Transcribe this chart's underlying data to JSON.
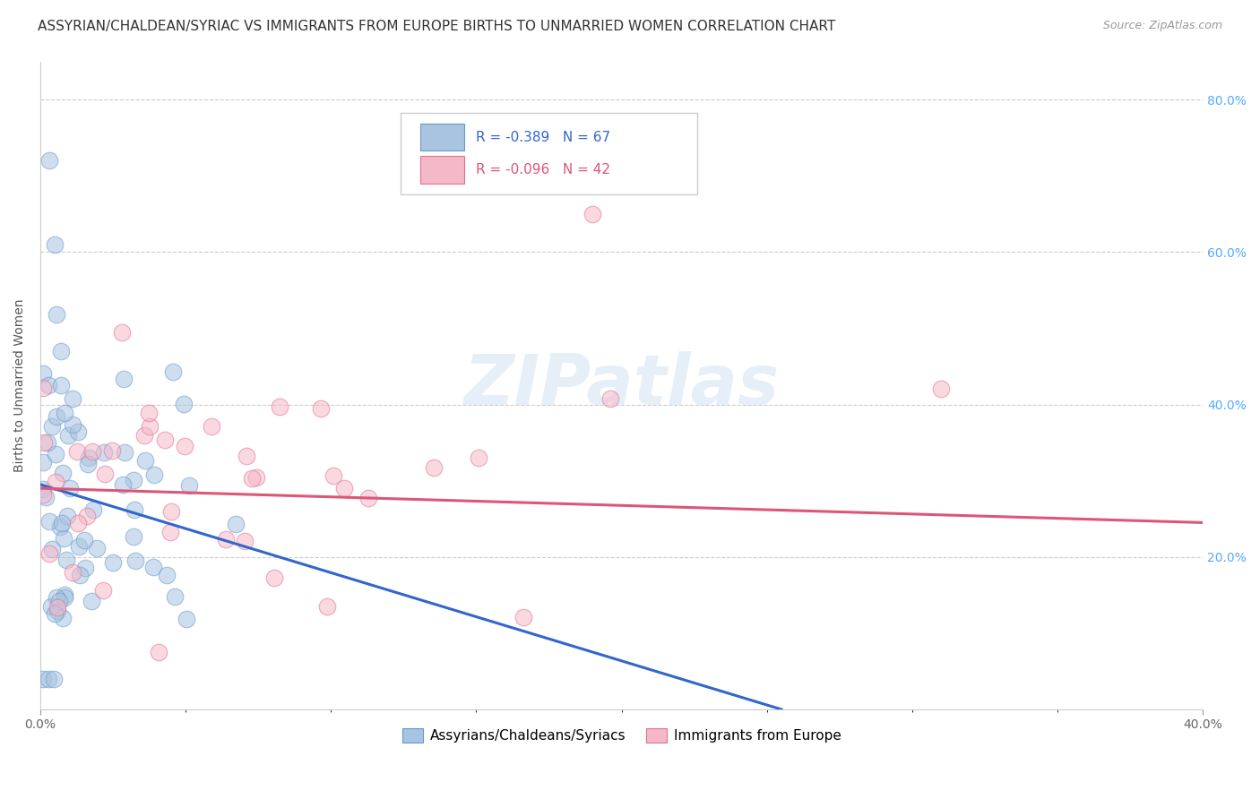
{
  "title": "ASSYRIAN/CHALDEAN/SYRIAC VS IMMIGRANTS FROM EUROPE BIRTHS TO UNMARRIED WOMEN CORRELATION CHART",
  "source": "Source: ZipAtlas.com",
  "ylabel": "Births to Unmarried Women",
  "legend_blue_r": "R = -0.389",
  "legend_blue_n": "N = 67",
  "legend_pink_r": "R = -0.096",
  "legend_pink_n": "N = 42",
  "legend_label_blue": "Assyrians/Chaldeans/Syriacs",
  "legend_label_pink": "Immigrants from Europe",
  "blue_color": "#a8c4e0",
  "blue_edge_color": "#6699cc",
  "blue_line_color": "#3366cc",
  "pink_color": "#f5b8c8",
  "pink_edge_color": "#e07090",
  "pink_line_color": "#dd5577",
  "background_color": "#ffffff",
  "watermark": "ZIPatlas",
  "xlim": [
    0.0,
    0.4
  ],
  "ylim": [
    0.0,
    0.85
  ],
  "blue_regression_x0": 0.0,
  "blue_regression_y0": 0.295,
  "blue_regression_x1": 0.255,
  "blue_regression_y1": 0.0,
  "pink_regression_x0": 0.0,
  "pink_regression_y0": 0.29,
  "pink_regression_x1": 0.4,
  "pink_regression_y1": 0.245,
  "xtick_left_label": "0.0%",
  "xtick_right_label": "40.0%",
  "ytick_right_labels": [
    "20.0%",
    "40.0%",
    "60.0%",
    "80.0%"
  ],
  "ytick_right_values": [
    0.2,
    0.4,
    0.6,
    0.8
  ],
  "ytick_left_values": [
    0.0,
    0.2,
    0.4,
    0.6,
    0.8
  ],
  "scatter_size": 180,
  "scatter_alpha": 0.55,
  "grid_color": "#cccccc",
  "grid_style": "--",
  "title_fontsize": 11,
  "label_fontsize": 10,
  "tick_fontsize": 10,
  "right_tick_color": "#55aaff"
}
